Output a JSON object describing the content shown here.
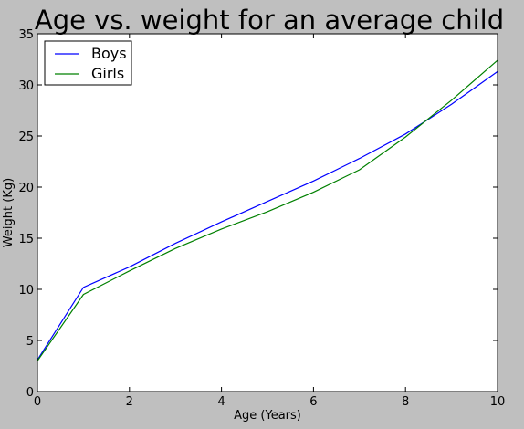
{
  "chart_data": {
    "type": "line",
    "title": "Age vs. weight for an average child",
    "xlabel": "Age (Years)",
    "ylabel": "Weight (Kg)",
    "xlim": [
      0,
      10
    ],
    "ylim": [
      0,
      35
    ],
    "xticks": [
      0,
      2,
      4,
      6,
      8,
      10
    ],
    "yticks": [
      0,
      5,
      10,
      15,
      20,
      25,
      30,
      35
    ],
    "grid": false,
    "legend_position": "top-left",
    "x": [
      0,
      1,
      2,
      3,
      4,
      5,
      6,
      7,
      8,
      9,
      10
    ],
    "series": [
      {
        "name": "Boys",
        "color": "#0000ff",
        "values": [
          3.1,
          10.2,
          12.2,
          14.5,
          16.6,
          18.6,
          20.6,
          22.8,
          25.2,
          28.1,
          31.3
        ]
      },
      {
        "name": "Girls",
        "color": "#008000",
        "values": [
          3.0,
          9.5,
          11.8,
          14.0,
          15.9,
          17.6,
          19.5,
          21.7,
          24.9,
          28.5,
          32.4
        ]
      }
    ]
  }
}
